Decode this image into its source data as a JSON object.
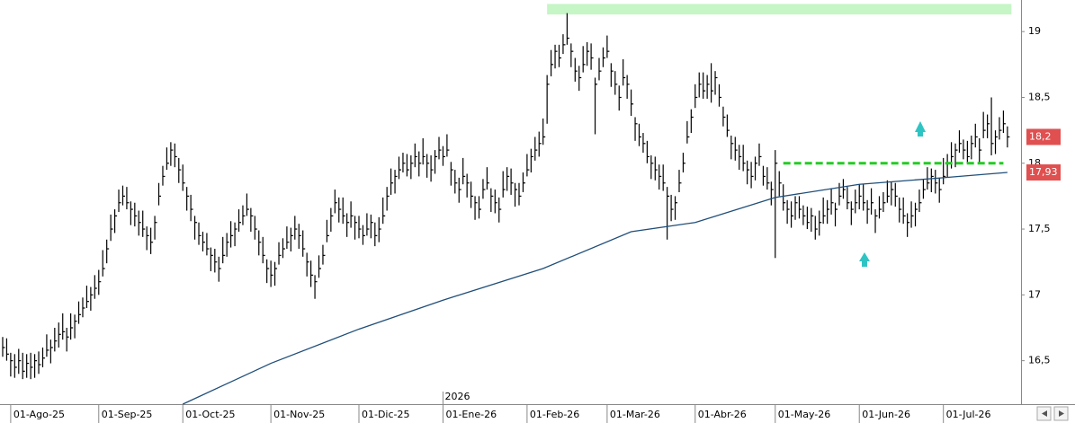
{
  "chart_data": {
    "type": "ohlc",
    "color": "#000000",
    "xlim": [
      -0.67,
      254.4
    ],
    "ylim": [
      16.17,
      19.24
    ],
    "yticks": [
      19,
      {
        "value": 18.5,
        "label": "18,5"
      },
      18,
      {
        "value": 17.5,
        "label": "17,5"
      },
      17,
      {
        "value": 16.5,
        "label": "16,5"
      }
    ],
    "xticks": [
      {
        "value": 2,
        "label": "01-Ago-25"
      },
      {
        "value": 24,
        "label": "01-Sep-25"
      },
      {
        "value": 45,
        "label": "01-Oct-25"
      },
      {
        "value": 67,
        "label": "01-Nov-25"
      },
      {
        "value": 89,
        "label": "01-Dic-25"
      },
      {
        "value": 110,
        "label": "01-Ene-26"
      },
      {
        "value": 131,
        "label": "01-Feb-26"
      },
      {
        "value": 151,
        "label": "01-Mar-26"
      },
      {
        "value": 173,
        "label": "01-Abr-26"
      },
      {
        "value": 193,
        "label": "01-May-26"
      },
      {
        "value": 214,
        "label": "01-Jun-26"
      },
      {
        "value": 235,
        "label": "01-Jul-26"
      }
    ],
    "year_marker": {
      "value": 110,
      "label": "2026"
    },
    "close": [
      16.6,
      16.55,
      16.5,
      16.45,
      16.5,
      16.42,
      16.48,
      16.45,
      16.5,
      16.47,
      16.52,
      16.58,
      16.6,
      16.65,
      16.7,
      16.72,
      16.68,
      16.75,
      16.8,
      16.85,
      16.9,
      16.95,
      17.0,
      17.05,
      17.1,
      17.2,
      17.35,
      17.5,
      17.6,
      17.7,
      17.75,
      17.7,
      17.65,
      17.6,
      17.55,
      17.5,
      17.45,
      17.4,
      17.55,
      17.75,
      17.9,
      18.0,
      18.1,
      18.05,
      17.95,
      17.85,
      17.75,
      17.65,
      17.55,
      17.45,
      17.4,
      17.35,
      17.3,
      17.25,
      17.2,
      17.3,
      17.4,
      17.45,
      17.5,
      17.55,
      17.6,
      17.65,
      17.6,
      17.5,
      17.4,
      17.3,
      17.2,
      17.15,
      17.2,
      17.3,
      17.35,
      17.4,
      17.45,
      17.5,
      17.45,
      17.35,
      17.25,
      17.15,
      17.1,
      17.2,
      17.3,
      17.45,
      17.6,
      17.7,
      17.65,
      17.6,
      17.55,
      17.6,
      17.55,
      17.5,
      17.45,
      17.5,
      17.55,
      17.45,
      17.5,
      17.6,
      17.75,
      17.85,
      17.9,
      17.95,
      18.0,
      17.95,
      18.0,
      18.05,
      18.0,
      18.05,
      18.0,
      17.95,
      18.05,
      18.1,
      18.05,
      18.1,
      17.95,
      17.85,
      17.8,
      17.9,
      17.85,
      17.75,
      17.7,
      17.65,
      17.8,
      17.85,
      17.75,
      17.7,
      17.65,
      17.8,
      17.9,
      17.85,
      17.8,
      17.75,
      17.85,
      17.95,
      18.05,
      18.1,
      18.15,
      18.2,
      18.6,
      18.75,
      18.85,
      18.8,
      18.9,
      18.95,
      18.85,
      18.7,
      18.65,
      18.75,
      18.85,
      18.8,
      18.6,
      18.7,
      18.8,
      18.85,
      18.7,
      18.6,
      18.5,
      18.65,
      18.6,
      18.45,
      18.3,
      18.2,
      18.15,
      18.05,
      18.0,
      17.95,
      17.9,
      17.85,
      17.75,
      17.65,
      17.7,
      17.85,
      18.0,
      18.2,
      18.35,
      18.5,
      18.6,
      18.55,
      18.6,
      18.55,
      18.65,
      18.5,
      18.35,
      18.25,
      18.15,
      18.1,
      18.05,
      18.0,
      17.95,
      17.9,
      18.0,
      18.05,
      17.9,
      17.85,
      17.8,
      18.0,
      17.85,
      17.7,
      17.65,
      17.6,
      17.7,
      17.65,
      17.6,
      17.55,
      17.6,
      17.5,
      17.55,
      17.6,
      17.65,
      17.7,
      17.65,
      17.75,
      17.8,
      17.7,
      17.65,
      17.7,
      17.75,
      17.7,
      17.65,
      17.7,
      17.6,
      17.65,
      17.7,
      17.75,
      17.8,
      17.75,
      17.65,
      17.6,
      17.55,
      17.6,
      17.65,
      17.7,
      17.8,
      17.85,
      17.9,
      17.85,
      17.8,
      17.9,
      18.0,
      18.05,
      18.1,
      18.15,
      18.1,
      18.05,
      18.15,
      18.2,
      18.1,
      18.25,
      18.3,
      18.15,
      18.2,
      18.25,
      18.3,
      18.2
    ],
    "high": [
      16.68,
      16.67,
      16.56,
      16.55,
      16.59,
      16.56,
      16.55,
      16.56,
      16.55,
      16.57,
      16.6,
      16.7,
      16.66,
      16.75,
      16.79,
      16.86,
      16.75,
      16.86,
      16.85,
      16.95,
      16.98,
      17.07,
      17.06,
      17.15,
      17.19,
      17.34,
      17.42,
      17.61,
      17.65,
      17.8,
      17.83,
      17.82,
      17.71,
      17.7,
      17.64,
      17.64,
      17.52,
      17.51,
      17.6,
      17.85,
      17.98,
      18.12,
      18.16,
      18.15,
      18.04,
      17.99,
      17.82,
      17.76,
      17.6,
      17.55,
      17.48,
      17.47,
      17.36,
      17.35,
      17.29,
      17.44,
      17.47,
      17.56,
      17.55,
      17.65,
      17.68,
      17.77,
      17.66,
      17.6,
      17.49,
      17.44,
      17.27,
      17.26,
      17.25,
      17.4,
      17.43,
      17.52,
      17.51,
      17.6,
      17.54,
      17.49,
      17.32,
      17.26,
      17.15,
      17.3,
      17.38,
      17.57,
      17.66,
      17.8,
      17.74,
      17.74,
      17.62,
      17.71,
      17.6,
      17.6,
      17.53,
      17.62,
      17.61,
      17.55,
      17.59,
      17.74,
      17.82,
      17.96,
      17.95,
      18.05,
      18.08,
      18.07,
      18.06,
      18.15,
      18.09,
      18.19,
      18.07,
      18.06,
      18.1,
      18.2,
      18.13,
      18.22,
      18.01,
      17.95,
      17.89,
      18.04,
      17.92,
      17.86,
      17.75,
      17.75,
      17.88,
      17.97,
      17.81,
      17.8,
      17.74,
      17.94,
      17.97,
      17.96,
      17.85,
      17.85,
      17.93,
      18.07,
      18.11,
      18.2,
      18.24,
      18.34,
      18.67,
      18.86,
      18.9,
      18.9,
      18.98,
      19.14,
      18.91,
      18.8,
      18.74,
      18.89,
      18.92,
      18.91,
      18.65,
      18.8,
      18.88,
      18.97,
      18.76,
      18.7,
      18.59,
      18.79,
      18.67,
      18.56,
      18.35,
      18.3,
      18.23,
      18.17,
      18.06,
      18.05,
      17.99,
      17.99,
      17.82,
      17.76,
      17.75,
      17.95,
      18.08,
      18.32,
      18.41,
      18.6,
      18.69,
      18.69,
      18.67,
      18.76,
      18.7,
      18.6,
      18.43,
      18.37,
      18.21,
      18.2,
      18.14,
      18.14,
      18.02,
      18.01,
      18.05,
      18.15,
      17.98,
      17.97,
      17.86,
      18.1,
      17.94,
      17.84,
      17.72,
      17.71,
      17.75,
      17.75,
      17.68,
      17.67,
      17.66,
      17.6,
      17.64,
      17.74,
      17.72,
      17.81,
      17.7,
      17.85,
      17.88,
      17.82,
      17.71,
      17.8,
      17.84,
      17.84,
      17.72,
      17.81,
      17.65,
      17.75,
      17.78,
      17.87,
      17.86,
      17.85,
      17.74,
      17.74,
      17.62,
      17.71,
      17.7,
      17.8,
      17.88,
      17.97,
      17.96,
      17.95,
      17.89,
      18.04,
      18.07,
      18.16,
      18.15,
      18.25,
      18.18,
      18.17,
      18.21,
      18.3,
      18.19,
      18.39,
      18.37,
      18.5,
      18.25,
      18.35,
      18.4,
      18.28
    ],
    "low": [
      16.53,
      16.5,
      16.38,
      16.37,
      16.4,
      16.36,
      16.37,
      16.36,
      16.37,
      16.4,
      16.45,
      16.53,
      16.48,
      16.57,
      16.6,
      16.66,
      16.57,
      16.66,
      16.67,
      16.78,
      16.83,
      16.9,
      16.88,
      16.97,
      17.0,
      17.14,
      17.24,
      17.41,
      17.47,
      17.63,
      17.68,
      17.65,
      17.53,
      17.52,
      17.45,
      17.44,
      17.34,
      17.31,
      17.42,
      17.68,
      17.83,
      17.95,
      17.98,
      17.97,
      17.85,
      17.79,
      17.64,
      17.56,
      17.42,
      17.38,
      17.33,
      17.3,
      17.18,
      17.17,
      17.1,
      17.24,
      17.29,
      17.36,
      17.37,
      17.48,
      17.53,
      17.6,
      17.48,
      17.42,
      17.3,
      17.24,
      17.09,
      17.06,
      17.07,
      17.23,
      17.28,
      17.35,
      17.33,
      17.42,
      17.35,
      17.29,
      17.14,
      17.06,
      16.97,
      17.13,
      17.23,
      17.4,
      17.48,
      17.62,
      17.55,
      17.54,
      17.44,
      17.51,
      17.42,
      17.43,
      17.38,
      17.45,
      17.43,
      17.37,
      17.4,
      17.54,
      17.64,
      17.76,
      17.77,
      17.88,
      17.93,
      17.9,
      17.88,
      17.97,
      17.9,
      17.99,
      17.89,
      17.86,
      17.92,
      18.03,
      17.98,
      18.05,
      17.83,
      17.77,
      17.7,
      17.84,
      17.74,
      17.66,
      17.57,
      17.58,
      17.73,
      17.8,
      17.63,
      17.62,
      17.55,
      17.74,
      17.79,
      17.76,
      17.67,
      17.68,
      17.78,
      17.9,
      17.93,
      18.02,
      18.05,
      18.14,
      18.3,
      18.66,
      18.72,
      18.73,
      18.83,
      18.9,
      18.73,
      18.62,
      18.55,
      18.69,
      18.74,
      18.71,
      18.22,
      18.63,
      18.73,
      18.8,
      18.58,
      18.52,
      18.4,
      18.59,
      18.49,
      18.36,
      18.17,
      18.13,
      18.08,
      18.0,
      17.88,
      17.87,
      17.8,
      17.79,
      17.42,
      17.56,
      17.57,
      17.78,
      17.93,
      18.15,
      18.23,
      18.42,
      18.5,
      18.49,
      18.49,
      18.46,
      18.52,
      18.43,
      18.28,
      18.2,
      18.03,
      18.02,
      17.95,
      17.94,
      17.84,
      17.81,
      17.87,
      17.98,
      17.83,
      17.8,
      17.68,
      17.28,
      17.75,
      17.64,
      17.54,
      17.51,
      17.57,
      17.58,
      17.53,
      17.5,
      17.48,
      17.42,
      17.45,
      17.54,
      17.54,
      17.61,
      17.52,
      17.68,
      17.73,
      17.65,
      17.53,
      17.62,
      17.65,
      17.64,
      17.54,
      17.61,
      17.47,
      17.58,
      17.63,
      17.7,
      17.68,
      17.67,
      17.55,
      17.54,
      17.44,
      17.51,
      17.52,
      17.63,
      17.73,
      17.8,
      17.78,
      17.77,
      17.7,
      17.84,
      17.89,
      17.96,
      17.97,
      18.08,
      18.03,
      18.0,
      18.03,
      18.12,
      18.0,
      18.19,
      18.19,
      18.06,
      18.07,
      18.18,
      18.23,
      18.12
    ],
    "moving_average": {
      "color": "#1f4e79",
      "x": [
        45,
        67,
        89,
        110,
        135,
        157,
        173,
        193,
        214,
        235,
        251
      ],
      "values": [
        16.17,
        16.48,
        16.74,
        16.96,
        17.2,
        17.48,
        17.55,
        17.74,
        17.84,
        17.89,
        17.93
      ]
    },
    "resistance": {
      "color": "#c6f5c6",
      "x": [
        136,
        252
      ],
      "y": [
        19.13,
        19.21
      ]
    },
    "support": {
      "color": "#22cc22",
      "x": [
        195,
        250
      ],
      "value": 18.0
    },
    "price_labels": [
      {
        "value": 18.2,
        "label": "18,2"
      },
      {
        "value": 17.93,
        "label": "17,93"
      }
    ],
    "price_label_color": "#e05050"
  }
}
